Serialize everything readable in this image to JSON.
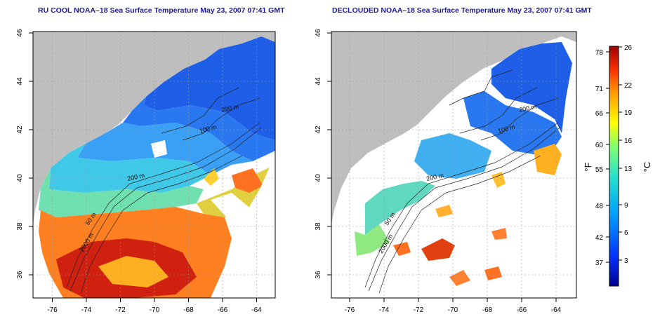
{
  "panels": [
    {
      "id": "left",
      "title": "RU COOL NOAA–18 Sea Surface Temperature May 23, 2007 07:41 GMT"
    },
    {
      "id": "right",
      "title": "DECLOUDED NOAA–18 Sea Surface Temperature May 23, 2007 07:41 GMT"
    }
  ],
  "map_axes": {
    "lon_ticks": [
      "-76",
      "-74",
      "-72",
      "-70",
      "-68",
      "-66",
      "-64"
    ],
    "lat_ticks": [
      "36",
      "38",
      "40",
      "42",
      "44",
      "46"
    ],
    "lon_range": [
      -77.2,
      -62.8
    ],
    "lat_range": [
      35,
      46
    ],
    "grid": "dotted"
  },
  "contours": {
    "labels": [
      "200 m",
      "100 m",
      "200 m",
      "50 m",
      "2000 m"
    ],
    "line_color": "#222222"
  },
  "colorbar": {
    "fahrenheit_label": "°F",
    "celsius_label": "°C",
    "fahrenheit_ticks": [
      "78",
      "71",
      "66",
      "60",
      "55",
      "48",
      "42",
      "37"
    ],
    "celsius_ticks": [
      "26",
      "22",
      "19",
      "16",
      "13",
      "9",
      "6",
      "3"
    ],
    "colors": [
      "#00008f",
      "#0040ff",
      "#00a0ff",
      "#20e0e0",
      "#80ff80",
      "#ffff00",
      "#ffa000",
      "#ff4000",
      "#a00000"
    ],
    "range_c": [
      0,
      26
    ]
  },
  "colors": {
    "land": "#bebebe",
    "title_text": "#1a1aa0",
    "no_data": "#ffffff"
  }
}
